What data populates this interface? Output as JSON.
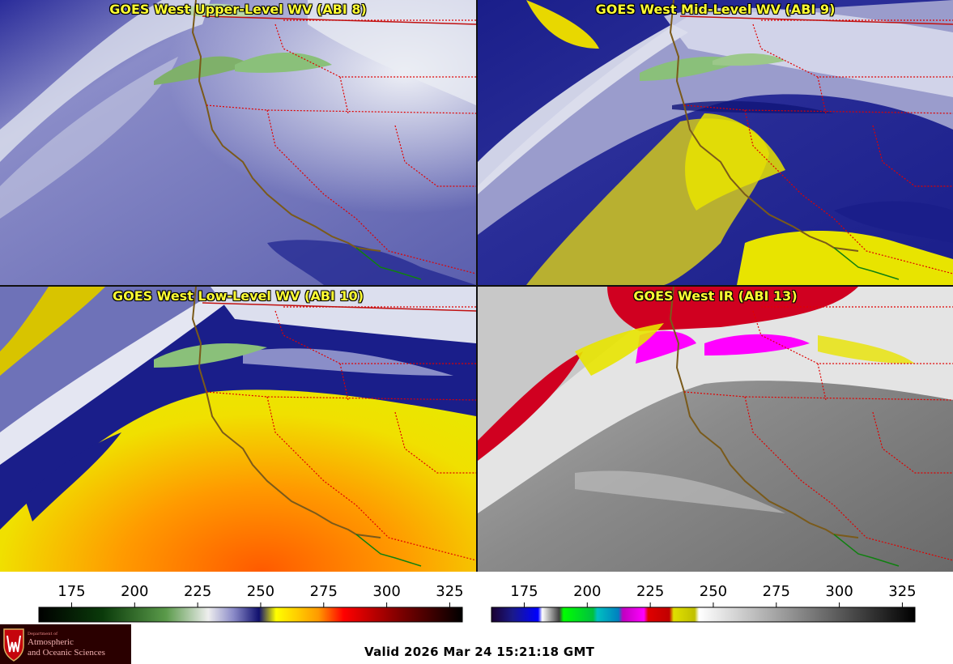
{
  "panels": [
    {
      "title": "GOES West Upper-Level WV (ABI 8)",
      "colormap": "wv"
    },
    {
      "title": "GOES West Mid-Level WV (ABI 9)",
      "colormap": "wv"
    },
    {
      "title": "GOES West Low-Level WV (ABI 10)",
      "colormap": "wv"
    },
    {
      "title": "GOES West IR (ABI 13)",
      "colormap": "ir"
    }
  ],
  "colorbars": {
    "wv": {
      "ticks": [
        "175",
        "200",
        "225",
        "250",
        "275",
        "300",
        "325"
      ],
      "range": [
        162,
        330
      ]
    },
    "ir": {
      "ticks": [
        "175",
        "200",
        "225",
        "250",
        "275",
        "300",
        "325"
      ],
      "range": [
        162,
        330
      ]
    }
  },
  "logo": {
    "dept": "Department of",
    "line1": "Atmospheric",
    "line2": "and Oceanic Sciences"
  },
  "valid_time": "Valid 2026 Mar 24 15:21:18 GMT",
  "colors": {
    "wv_moist": "#e8ecf0",
    "wv_mid": "#6e72b8",
    "wv_dry_blue": "#141a8c",
    "wv_yellow": "#ffff00",
    "wv_orange": "#ff8800",
    "ir_red": "#e00020",
    "ir_magenta": "#ff00ff",
    "coast": "#7a5a1a",
    "state_lines": "#e00000"
  }
}
